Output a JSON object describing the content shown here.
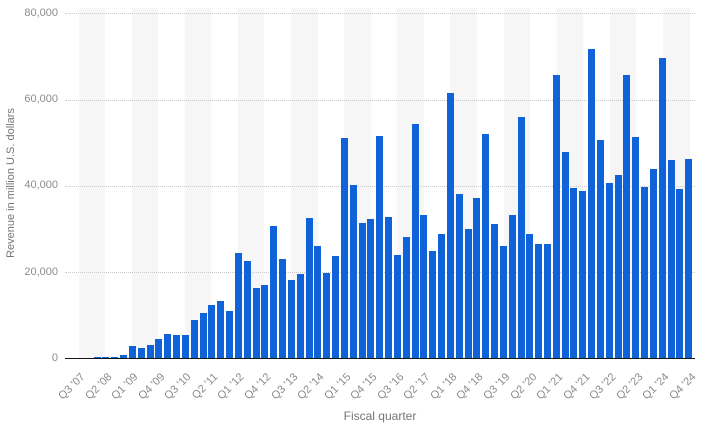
{
  "chart_data": {
    "type": "bar",
    "title": "",
    "xlabel": "Fiscal quarter",
    "ylabel": "Revenue in million U.S. dollars",
    "ylim": [
      0,
      80000
    ],
    "yticks": [
      0,
      20000,
      40000,
      60000,
      80000
    ],
    "ytick_labels": [
      "0",
      "20,000",
      "40,000",
      "60,000",
      "80,000"
    ],
    "grid": "horizontal dotted gridlines, alternating vertical background bands every 3 quarters",
    "legend_position": "none",
    "xtick_every": 3,
    "xtick_labels_shown": [
      "Q3 '07",
      "Q2 '08",
      "Q1 '09",
      "Q4 '09",
      "Q3 '10",
      "Q2 '11",
      "Q1 '12",
      "Q4 '12",
      "Q3 '13",
      "Q2 '14",
      "Q1 '15",
      "Q4 '15",
      "Q3 '16",
      "Q2 '17",
      "Q1 '18",
      "Q4 '18",
      "Q3 '19",
      "Q2 '20",
      "Q1 '21",
      "Q4 '21",
      "Q3 '22",
      "Q2 '23",
      "Q1 '24",
      "Q4 '24"
    ],
    "categories": [
      "Q3 '07",
      "Q4 '07",
      "Q1 '08",
      "Q2 '08",
      "Q3 '08",
      "Q4 '08",
      "Q1 '09",
      "Q2 '09",
      "Q3 '09",
      "Q4 '09",
      "Q1 '10",
      "Q2 '10",
      "Q3 '10",
      "Q4 '10",
      "Q1 '11",
      "Q2 '11",
      "Q3 '11",
      "Q4 '11",
      "Q1 '12",
      "Q2 '12",
      "Q3 '12",
      "Q4 '12",
      "Q1 '13",
      "Q2 '13",
      "Q3 '13",
      "Q4 '13",
      "Q1 '14",
      "Q2 '14",
      "Q3 '14",
      "Q4 '14",
      "Q1 '15",
      "Q2 '15",
      "Q3 '15",
      "Q4 '15",
      "Q1 '16",
      "Q2 '16",
      "Q3 '16",
      "Q4 '16",
      "Q1 '17",
      "Q2 '17",
      "Q3 '17",
      "Q4 '17",
      "Q1 '18",
      "Q2 '18",
      "Q3 '18",
      "Q4 '18",
      "Q1 '19",
      "Q2 '19",
      "Q3 '19",
      "Q4 '19",
      "Q1 '20",
      "Q2 '20",
      "Q3 '20",
      "Q4 '20",
      "Q1 '21",
      "Q2 '21",
      "Q3 '21",
      "Q4 '21",
      "Q1 '22",
      "Q2 '22",
      "Q3 '22",
      "Q4 '22",
      "Q1 '23",
      "Q2 '23",
      "Q3 '23",
      "Q4 '23",
      "Q1 '24",
      "Q2 '24",
      "Q3 '24",
      "Q4 '24"
    ],
    "values": [
      5,
      118,
      241,
      378,
      419,
      806,
      2940,
      2427,
      3056,
      4610,
      5578,
      5445,
      5334,
      8822,
      10468,
      12298,
      13311,
      10980,
      24417,
      22690,
      16245,
      17125,
      30660,
      22955,
      18154,
      19510,
      32498,
      26064,
      19751,
      23678,
      51182,
      40282,
      31368,
      32209,
      51635,
      32857,
      24048,
      28160,
      54378,
      33249,
      24846,
      28846,
      61576,
      38032,
      29906,
      37185,
      51982,
      31051,
      25986,
      33362,
      55957,
      28962,
      26418,
      26444,
      65597,
      47938,
      39570,
      38868,
      71628,
      50570,
      40665,
      42626,
      65775,
      51334,
      39669,
      43805,
      69702,
      45963,
      39296,
      46222
    ]
  },
  "colors": {
    "bar": "#0f62d7",
    "stripe_band": "#f6f6f6",
    "gridline": "#c9c9c9",
    "axis_line": "#151515",
    "tick_text": "#8c8c8c",
    "axis_title_text": "#767676",
    "background": "#ffffff"
  }
}
